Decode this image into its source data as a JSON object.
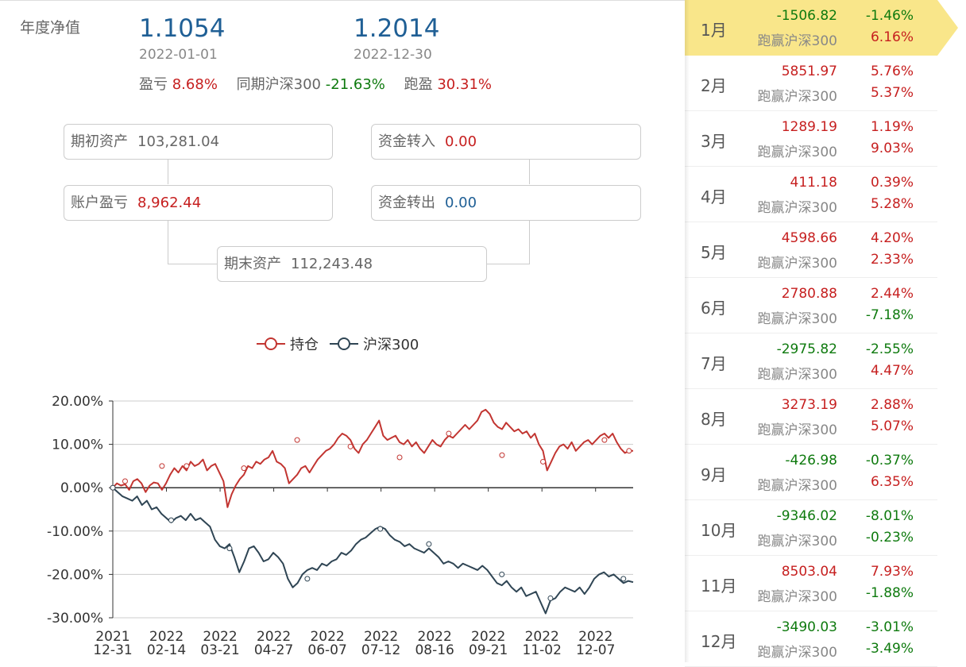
{
  "header": {
    "title": "年度净值",
    "start_nav": "1.1054",
    "start_date": "2022-01-01",
    "end_nav": "1.2014",
    "end_date": "2022-12-30",
    "pnl_label": "盈亏",
    "pnl_value": "8.68%",
    "bench_label": "同期沪深300",
    "bench_value": "-21.63%",
    "excess_label": "跑盈",
    "excess_value": "30.31%"
  },
  "flow": {
    "begin_label": "期初资产",
    "begin_value": "103,281.04",
    "in_label": "资金转入",
    "in_value": "0.00",
    "pnl_label": "账户盈亏",
    "pnl_value": "8,962.44",
    "out_label": "资金转出",
    "out_value": "0.00",
    "end_label": "期末资产",
    "end_value": "112,243.48"
  },
  "colors": {
    "holding": "#c23531",
    "index": "#2f4554",
    "red": "#c61f1f",
    "green": "#0e7a0e",
    "highlight": "#f9e68a"
  },
  "chart_data": {
    "type": "line",
    "legend": [
      "持仓",
      "沪深300"
    ],
    "y_ticks": [
      "20.00%",
      "10.00%",
      "0.00%",
      "-10.00%",
      "-20.00%",
      "-30.00%"
    ],
    "ylim": [
      -30,
      20
    ],
    "x_ticks": [
      {
        "year": "2021",
        "md": "12-31"
      },
      {
        "year": "2022",
        "md": "02-14"
      },
      {
        "year": "2022",
        "md": "03-21"
      },
      {
        "year": "2022",
        "md": "04-27"
      },
      {
        "year": "2022",
        "md": "06-07"
      },
      {
        "year": "2022",
        "md": "07-12"
      },
      {
        "year": "2022",
        "md": "08-16"
      },
      {
        "year": "2022",
        "md": "09-21"
      },
      {
        "year": "2022",
        "md": "11-02"
      },
      {
        "year": "2022",
        "md": "12-07"
      }
    ],
    "series": [
      {
        "name": "持仓",
        "values": [
          0,
          1,
          0.5,
          0.8,
          -0.5,
          1.5,
          2,
          1,
          -1,
          0.5,
          1.2,
          1,
          -0.5,
          1,
          3,
          4.5,
          3.5,
          5,
          4,
          6,
          5,
          5.5,
          6.5,
          4,
          5,
          5.5,
          3.5,
          1.5,
          -4.5,
          -1.5,
          0.5,
          2,
          3,
          5,
          4.5,
          6,
          5.5,
          6.5,
          7,
          8.5,
          6,
          5.5,
          4.5,
          1,
          2,
          3,
          4.5,
          5,
          3.5,
          5,
          6.5,
          7.5,
          8.5,
          9,
          10,
          11.5,
          12.5,
          12,
          11,
          9,
          8,
          10,
          11,
          12.5,
          14,
          15.5,
          12,
          11,
          11.5,
          12,
          10.5,
          10,
          11,
          9.5,
          10.5,
          9,
          8,
          9.5,
          11,
          10,
          9.5,
          11,
          12,
          11.5,
          12.5,
          13.5,
          14.5,
          13.5,
          14.5,
          15.5,
          17.5,
          18,
          17,
          15,
          14,
          13.5,
          15,
          14,
          13,
          13.5,
          12.5,
          13,
          11.5,
          12.5,
          10,
          8.5,
          4,
          6,
          8,
          9.5,
          10,
          9,
          10.5,
          8.5,
          9.5,
          10.5,
          11,
          10,
          11,
          12,
          12.5,
          11.5,
          12.5,
          10.5,
          9,
          8,
          8.5,
          8.5
        ],
        "markers": [
          [
            0,
            0
          ],
          [
            3,
            1.5
          ],
          [
            12,
            5
          ],
          [
            18,
            5
          ],
          [
            32,
            4.5
          ],
          [
            45,
            11
          ],
          [
            58,
            9.5
          ],
          [
            70,
            7
          ],
          [
            82,
            12.5
          ],
          [
            95,
            7.5
          ],
          [
            105,
            6
          ],
          [
            120,
            11
          ],
          [
            126,
            8.5
          ]
        ]
      },
      {
        "name": "沪深300",
        "values": [
          0,
          -1,
          -2,
          -2.5,
          -3,
          -2,
          -4,
          -3,
          -5,
          -4.5,
          -6,
          -7,
          -8,
          -7,
          -6.5,
          -7.5,
          -6,
          -7.5,
          -7,
          -8,
          -9,
          -12,
          -13.5,
          -14,
          -13,
          -16,
          -19.5,
          -17,
          -14,
          -13.5,
          -15,
          -17,
          -16.5,
          -15,
          -16,
          -17.5,
          -21,
          -23,
          -22,
          -20,
          -19,
          -18.5,
          -19,
          -17.5,
          -18,
          -17,
          -16.5,
          -15,
          -15.5,
          -14.5,
          -13,
          -12,
          -11.5,
          -10.5,
          -9.5,
          -9,
          -9.5,
          -11,
          -12,
          -12.5,
          -13.5,
          -13,
          -14,
          -14.5,
          -15,
          -14,
          -15,
          -16,
          -17.5,
          -17,
          -17.5,
          -18.5,
          -17.5,
          -18,
          -18.5,
          -19,
          -18,
          -19,
          -20.5,
          -22,
          -22.5,
          -21.5,
          -23,
          -24,
          -23,
          -25,
          -24.5,
          -24,
          -26.5,
          -29,
          -26,
          -25.5,
          -24,
          -23,
          -23.5,
          -24,
          -23,
          -24.5,
          -23,
          -21,
          -20,
          -19.5,
          -20.5,
          -20,
          -21,
          -22,
          -21.5,
          -21.8
        ],
        "markers": [
          [
            0,
            0
          ],
          [
            12,
            -7.5
          ],
          [
            24,
            -14
          ],
          [
            40,
            -21
          ],
          [
            55,
            -9.5
          ],
          [
            65,
            -13
          ],
          [
            80,
            -20
          ],
          [
            90,
            -25.5
          ],
          [
            105,
            -21
          ]
        ]
      }
    ]
  },
  "months": [
    {
      "m": "1月",
      "amt": "-1506.82",
      "pct": "-1.46%",
      "blabel": "跑赢沪深300",
      "bpct": "6.16%",
      "active": true
    },
    {
      "m": "2月",
      "amt": "5851.97",
      "pct": "5.76%",
      "blabel": "跑赢沪深300",
      "bpct": "5.37%"
    },
    {
      "m": "3月",
      "amt": "1289.19",
      "pct": "1.19%",
      "blabel": "跑赢沪深300",
      "bpct": "9.03%"
    },
    {
      "m": "4月",
      "amt": "411.18",
      "pct": "0.39%",
      "blabel": "跑赢沪深300",
      "bpct": "5.28%"
    },
    {
      "m": "5月",
      "amt": "4598.66",
      "pct": "4.20%",
      "blabel": "跑赢沪深300",
      "bpct": "2.33%"
    },
    {
      "m": "6月",
      "amt": "2780.88",
      "pct": "2.44%",
      "blabel": "跑赢沪深300",
      "bpct": "-7.18%"
    },
    {
      "m": "7月",
      "amt": "-2975.82",
      "pct": "-2.55%",
      "blabel": "跑赢沪深300",
      "bpct": "4.47%"
    },
    {
      "m": "8月",
      "amt": "3273.19",
      "pct": "2.88%",
      "blabel": "跑赢沪深300",
      "bpct": "5.07%"
    },
    {
      "m": "9月",
      "amt": "-426.98",
      "pct": "-0.37%",
      "blabel": "跑赢沪深300",
      "bpct": "6.35%"
    },
    {
      "m": "10月",
      "amt": "-9346.02",
      "pct": "-8.01%",
      "blabel": "跑赢沪深300",
      "bpct": "-0.23%"
    },
    {
      "m": "11月",
      "amt": "8503.04",
      "pct": "7.93%",
      "blabel": "跑赢沪深300",
      "bpct": "-1.88%"
    },
    {
      "m": "12月",
      "amt": "-3490.03",
      "pct": "-3.01%",
      "blabel": "跑赢沪深300",
      "bpct": "-3.49%"
    }
  ]
}
